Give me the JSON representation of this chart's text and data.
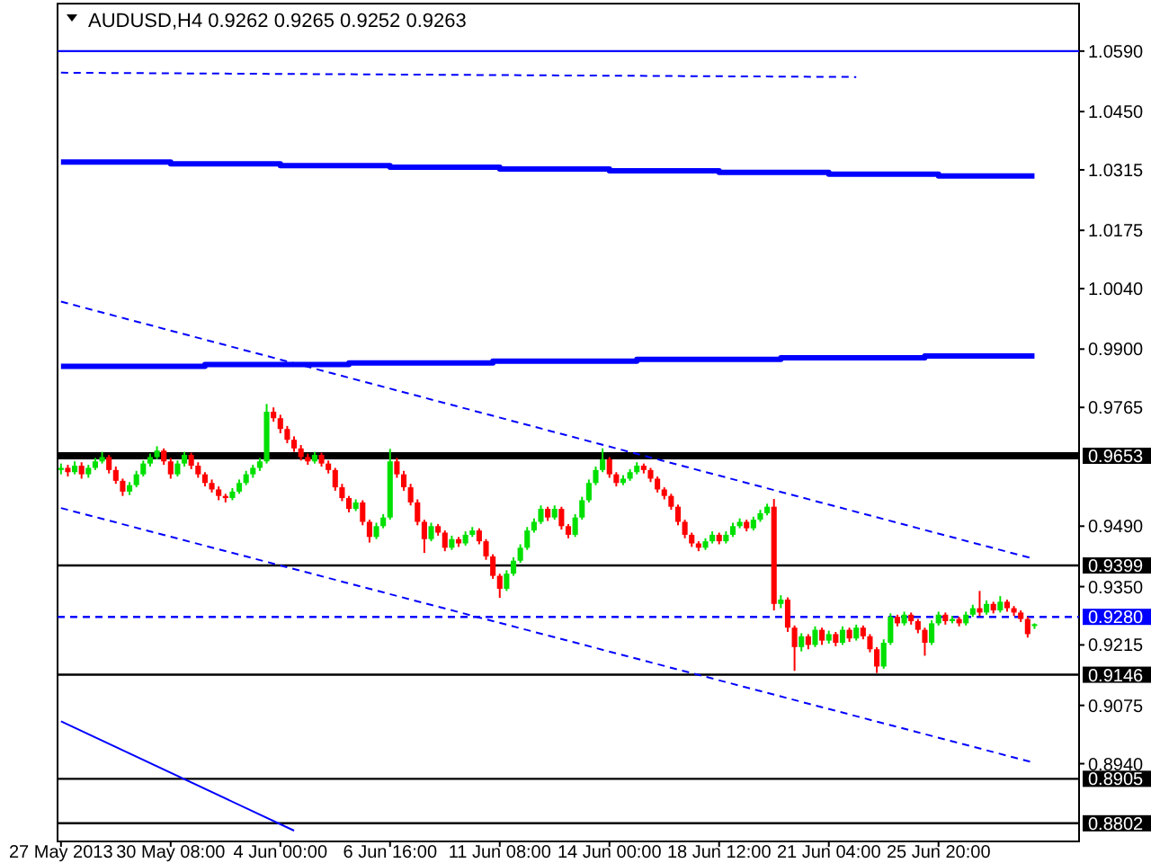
{
  "chart_data": {
    "type": "candlestick",
    "title": "AUDUSD,H4  0.9262 0.9265 0.9252 0.9263",
    "categories": [
      "27 May 2013",
      null,
      null,
      null,
      null,
      null,
      null,
      null,
      null,
      null,
      null,
      null,
      null,
      null,
      null,
      null,
      "30 May 08:00",
      null,
      null,
      null,
      null,
      null,
      null,
      null,
      null,
      null,
      null,
      null,
      null,
      null,
      null,
      null,
      "4 Jun 00:00",
      null,
      null,
      null,
      null,
      null,
      null,
      null,
      null,
      null,
      null,
      null,
      null,
      null,
      null,
      null,
      "6 Jun 16:00",
      null,
      null,
      null,
      null,
      null,
      null,
      null,
      null,
      null,
      null,
      null,
      null,
      null,
      null,
      null,
      "11 Jun 08:00",
      null,
      null,
      null,
      null,
      null,
      null,
      null,
      null,
      null,
      null,
      null,
      null,
      null,
      null,
      null,
      "14 Jun 00:00",
      null,
      null,
      null,
      null,
      null,
      null,
      null,
      null,
      null,
      null,
      null,
      null,
      null,
      null,
      null,
      "18 Jun 12:00",
      null,
      null,
      null,
      null,
      null,
      null,
      null,
      null,
      null,
      null,
      null,
      null,
      null,
      null,
      null,
      "21 Jun 04:00",
      null,
      null,
      null,
      null,
      null,
      null,
      null,
      null,
      null,
      null,
      null,
      null,
      null,
      null,
      null,
      "25 Jun 20:00",
      null,
      null,
      null,
      null,
      null,
      null,
      null,
      null,
      null,
      null,
      null,
      null,
      null,
      null
    ],
    "ohlc": [
      [
        0.962,
        0.9635,
        0.961,
        0.9625
      ],
      [
        0.9625,
        0.9632,
        0.9605,
        0.9615
      ],
      [
        0.9615,
        0.964,
        0.961,
        0.963
      ],
      [
        0.963,
        0.9638,
        0.96,
        0.961
      ],
      [
        0.961,
        0.9632,
        0.9602,
        0.9625
      ],
      [
        0.9625,
        0.9648,
        0.962,
        0.964
      ],
      [
        0.964,
        0.9662,
        0.9635,
        0.965
      ],
      [
        0.965,
        0.9655,
        0.9612,
        0.962
      ],
      [
        0.962,
        0.9628,
        0.9588,
        0.9595
      ],
      [
        0.9595,
        0.96,
        0.956,
        0.957
      ],
      [
        0.957,
        0.9592,
        0.9562,
        0.9585
      ],
      [
        0.9585,
        0.9618,
        0.958,
        0.961
      ],
      [
        0.961,
        0.9642,
        0.9605,
        0.9635
      ],
      [
        0.9635,
        0.9658,
        0.9628,
        0.965
      ],
      [
        0.965,
        0.9675,
        0.9645,
        0.9665
      ],
      [
        0.9665,
        0.967,
        0.9632,
        0.964
      ],
      [
        0.964,
        0.9648,
        0.96,
        0.961
      ],
      [
        0.961,
        0.9642,
        0.9605,
        0.9635
      ],
      [
        0.9635,
        0.9662,
        0.9628,
        0.9655
      ],
      [
        0.9655,
        0.966,
        0.9622,
        0.963
      ],
      [
        0.963,
        0.9638,
        0.9602,
        0.961
      ],
      [
        0.961,
        0.9615,
        0.9582,
        0.959
      ],
      [
        0.959,
        0.9598,
        0.9568,
        0.9575
      ],
      [
        0.9575,
        0.9582,
        0.955,
        0.956
      ],
      [
        0.956,
        0.9565,
        0.9545,
        0.9555
      ],
      [
        0.9555,
        0.9578,
        0.955,
        0.957
      ],
      [
        0.957,
        0.9598,
        0.9565,
        0.959
      ],
      [
        0.959,
        0.9618,
        0.9585,
        0.961
      ],
      [
        0.961,
        0.9632,
        0.9602,
        0.9625
      ],
      [
        0.9625,
        0.9648,
        0.9618,
        0.964
      ],
      [
        0.964,
        0.9773,
        0.9635,
        0.9755
      ],
      [
        0.9755,
        0.9765,
        0.9732,
        0.974
      ],
      [
        0.974,
        0.9748,
        0.9705,
        0.9715
      ],
      [
        0.9715,
        0.9722,
        0.9682,
        0.969
      ],
      [
        0.969,
        0.9698,
        0.9662,
        0.967
      ],
      [
        0.967,
        0.9678,
        0.9642,
        0.965
      ],
      [
        0.965,
        0.9658,
        0.9632,
        0.964
      ],
      [
        0.964,
        0.9662,
        0.9635,
        0.9655
      ],
      [
        0.9655,
        0.966,
        0.9628,
        0.9635
      ],
      [
        0.9635,
        0.9642,
        0.9612,
        0.962
      ],
      [
        0.962,
        0.9625,
        0.9572,
        0.958
      ],
      [
        0.958,
        0.9588,
        0.9548,
        0.9555
      ],
      [
        0.9555,
        0.956,
        0.9522,
        0.953
      ],
      [
        0.953,
        0.9552,
        0.9525,
        0.9545
      ],
      [
        0.9545,
        0.955,
        0.9492,
        0.95
      ],
      [
        0.95,
        0.9505,
        0.9452,
        0.9465
      ],
      [
        0.9465,
        0.9498,
        0.946,
        0.949
      ],
      [
        0.949,
        0.9518,
        0.9485,
        0.951
      ],
      [
        0.951,
        0.9669,
        0.9505,
        0.964
      ],
      [
        0.964,
        0.9648,
        0.9602,
        0.961
      ],
      [
        0.961,
        0.9618,
        0.9572,
        0.958
      ],
      [
        0.958,
        0.9588,
        0.9538,
        0.9545
      ],
      [
        0.9545,
        0.9552,
        0.9492,
        0.95
      ],
      [
        0.95,
        0.9505,
        0.9428,
        0.946
      ],
      [
        0.946,
        0.9498,
        0.9455,
        0.949
      ],
      [
        0.949,
        0.9495,
        0.9468,
        0.9475
      ],
      [
        0.9475,
        0.948,
        0.9432,
        0.944
      ],
      [
        0.944,
        0.9468,
        0.9435,
        0.946
      ],
      [
        0.946,
        0.9465,
        0.9442,
        0.945
      ],
      [
        0.945,
        0.9478,
        0.9445,
        0.947
      ],
      [
        0.947,
        0.9488,
        0.9465,
        0.948
      ],
      [
        0.948,
        0.9485,
        0.9448,
        0.9455
      ],
      [
        0.9455,
        0.946,
        0.9412,
        0.942
      ],
      [
        0.942,
        0.9425,
        0.9368,
        0.9375
      ],
      [
        0.9375,
        0.938,
        0.9324,
        0.9345
      ],
      [
        0.9345,
        0.9388,
        0.934,
        0.938
      ],
      [
        0.938,
        0.9418,
        0.9375,
        0.941
      ],
      [
        0.941,
        0.9448,
        0.9405,
        0.944
      ],
      [
        0.944,
        0.9488,
        0.9435,
        0.948
      ],
      [
        0.948,
        0.9508,
        0.9475,
        0.95
      ],
      [
        0.95,
        0.9538,
        0.9495,
        0.953
      ],
      [
        0.953,
        0.9535,
        0.9502,
        0.951
      ],
      [
        0.951,
        0.9538,
        0.9505,
        0.953
      ],
      [
        0.953,
        0.9535,
        0.9482,
        0.949
      ],
      [
        0.949,
        0.9495,
        0.9462,
        0.947
      ],
      [
        0.947,
        0.9518,
        0.9465,
        0.951
      ],
      [
        0.951,
        0.9558,
        0.9505,
        0.955
      ],
      [
        0.955,
        0.9598,
        0.9545,
        0.959
      ],
      [
        0.959,
        0.9628,
        0.9585,
        0.962
      ],
      [
        0.962,
        0.967,
        0.9615,
        0.9645
      ],
      [
        0.9645,
        0.965,
        0.9602,
        0.961
      ],
      [
        0.961,
        0.9615,
        0.9582,
        0.959
      ],
      [
        0.959,
        0.9608,
        0.9585,
        0.96
      ],
      [
        0.96,
        0.9622,
        0.9595,
        0.9615
      ],
      [
        0.9615,
        0.9638,
        0.961,
        0.963
      ],
      [
        0.963,
        0.9635,
        0.9612,
        0.962
      ],
      [
        0.962,
        0.9625,
        0.9592,
        0.96
      ],
      [
        0.96,
        0.9605,
        0.9568,
        0.9575
      ],
      [
        0.9575,
        0.958,
        0.9552,
        0.956
      ],
      [
        0.956,
        0.9565,
        0.9528,
        0.9535
      ],
      [
        0.9535,
        0.954,
        0.9492,
        0.95
      ],
      [
        0.95,
        0.9505,
        0.9462,
        0.947
      ],
      [
        0.947,
        0.9475,
        0.9442,
        0.945
      ],
      [
        0.945,
        0.9455,
        0.9432,
        0.944
      ],
      [
        0.944,
        0.9462,
        0.9435,
        0.9455
      ],
      [
        0.9455,
        0.9478,
        0.945,
        0.947
      ],
      [
        0.947,
        0.9475,
        0.9448,
        0.9455
      ],
      [
        0.9455,
        0.9478,
        0.945,
        0.947
      ],
      [
        0.947,
        0.9498,
        0.9465,
        0.949
      ],
      [
        0.949,
        0.9508,
        0.9485,
        0.95
      ],
      [
        0.95,
        0.9505,
        0.9478,
        0.9485
      ],
      [
        0.9485,
        0.9512,
        0.948,
        0.9505
      ],
      [
        0.9505,
        0.9528,
        0.95,
        0.952
      ],
      [
        0.952,
        0.9542,
        0.9515,
        0.9535
      ],
      [
        0.9535,
        0.9553,
        0.9295,
        0.931
      ],
      [
        0.931,
        0.933,
        0.93,
        0.932
      ],
      [
        0.932,
        0.9325,
        0.9245,
        0.9255
      ],
      [
        0.9255,
        0.926,
        0.9155,
        0.921
      ],
      [
        0.921,
        0.9242,
        0.92,
        0.9235
      ],
      [
        0.9235,
        0.924,
        0.9205,
        0.9215
      ],
      [
        0.9215,
        0.9258,
        0.921,
        0.925
      ],
      [
        0.925,
        0.9255,
        0.9215,
        0.9225
      ],
      [
        0.9225,
        0.9248,
        0.9218,
        0.924
      ],
      [
        0.924,
        0.9245,
        0.9212,
        0.922
      ],
      [
        0.922,
        0.9258,
        0.9215,
        0.925
      ],
      [
        0.925,
        0.9255,
        0.9222,
        0.923
      ],
      [
        0.923,
        0.9262,
        0.9225,
        0.9255
      ],
      [
        0.9255,
        0.926,
        0.9228,
        0.9235
      ],
      [
        0.9235,
        0.924,
        0.9198,
        0.9205
      ],
      [
        0.9205,
        0.921,
        0.915,
        0.9165
      ],
      [
        0.9165,
        0.9228,
        0.916,
        0.922
      ],
      [
        0.922,
        0.9288,
        0.9215,
        0.928
      ],
      [
        0.928,
        0.9285,
        0.9258,
        0.9265
      ],
      [
        0.9265,
        0.9292,
        0.926,
        0.9285
      ],
      [
        0.9285,
        0.929,
        0.9262,
        0.927
      ],
      [
        0.927,
        0.9275,
        0.9242,
        0.925
      ],
      [
        0.925,
        0.9255,
        0.919,
        0.922
      ],
      [
        0.922,
        0.9272,
        0.9215,
        0.9265
      ],
      [
        0.9265,
        0.9292,
        0.926,
        0.9285
      ],
      [
        0.9285,
        0.929,
        0.9262,
        0.927
      ],
      [
        0.927,
        0.9282,
        0.9265,
        0.9275
      ],
      [
        0.9275,
        0.928,
        0.9258,
        0.9265
      ],
      [
        0.9265,
        0.9292,
        0.926,
        0.9285
      ],
      [
        0.9285,
        0.9308,
        0.928,
        0.93
      ],
      [
        0.93,
        0.934,
        0.9282,
        0.929
      ],
      [
        0.929,
        0.9318,
        0.9285,
        0.931
      ],
      [
        0.931,
        0.9315,
        0.9288,
        0.9295
      ],
      [
        0.9295,
        0.9328,
        0.929,
        0.9315
      ],
      [
        0.9315,
        0.932,
        0.9292,
        0.93
      ],
      [
        0.93,
        0.9305,
        0.9282,
        0.929
      ],
      [
        0.929,
        0.9295,
        0.9268,
        0.9275
      ],
      [
        0.9275,
        0.928,
        0.9232,
        0.924
      ],
      [
        0.9262,
        0.9265,
        0.9252,
        0.9263
      ]
    ],
    "series": [
      {
        "type": "step",
        "color": "#0000ff",
        "values": [
          1.0333,
          null,
          null,
          null,
          null,
          null,
          null,
          null,
          null,
          null,
          null,
          null,
          null,
          null,
          null,
          null,
          1.0329,
          null,
          null,
          null,
          null,
          null,
          null,
          null,
          null,
          null,
          null,
          null,
          null,
          null,
          null,
          null,
          1.0325,
          null,
          null,
          null,
          null,
          null,
          null,
          null,
          null,
          null,
          null,
          null,
          null,
          null,
          null,
          null,
          1.0321,
          null,
          null,
          null,
          null,
          null,
          null,
          null,
          null,
          null,
          null,
          null,
          null,
          null,
          null,
          null,
          1.0317,
          null,
          null,
          null,
          null,
          null,
          null,
          null,
          null,
          null,
          null,
          null,
          null,
          null,
          null,
          null,
          1.0313,
          null,
          null,
          null,
          null,
          null,
          null,
          null,
          null,
          null,
          null,
          null,
          null,
          null,
          null,
          null,
          1.0309,
          null,
          null,
          null,
          null,
          null,
          null,
          null,
          null,
          null,
          null,
          null,
          null,
          null,
          null,
          null,
          1.0305,
          null,
          null,
          null,
          null,
          null,
          null,
          null,
          null,
          null,
          null,
          null,
          null,
          null,
          null,
          null,
          1.0301,
          null,
          null,
          null,
          null,
          null,
          null,
          null,
          null,
          null,
          null,
          null,
          null,
          null,
          1.0301
        ]
      },
      {
        "type": "step",
        "color": "#0000ff",
        "values": [
          0.986,
          null,
          null,
          null,
          null,
          null,
          null,
          null,
          null,
          null,
          null,
          null,
          null,
          null,
          null,
          null,
          null,
          null,
          null,
          null,
          null,
          0.9864,
          null,
          null,
          null,
          null,
          null,
          null,
          null,
          null,
          null,
          null,
          null,
          null,
          null,
          null,
          null,
          null,
          null,
          null,
          null,
          null,
          0.9868,
          null,
          null,
          null,
          null,
          null,
          null,
          null,
          null,
          null,
          null,
          null,
          null,
          null,
          null,
          null,
          null,
          null,
          null,
          null,
          null,
          0.9872,
          null,
          null,
          null,
          null,
          null,
          null,
          null,
          null,
          null,
          null,
          null,
          null,
          null,
          null,
          null,
          null,
          null,
          null,
          null,
          null,
          0.9876,
          null,
          null,
          null,
          null,
          null,
          null,
          null,
          null,
          null,
          null,
          null,
          null,
          null,
          null,
          null,
          null,
          null,
          null,
          null,
          null,
          0.988,
          null,
          null,
          null,
          null,
          null,
          null,
          null,
          null,
          null,
          null,
          null,
          null,
          null,
          null,
          null,
          null,
          null,
          null,
          null,
          null,
          0.9884,
          null,
          null,
          null,
          null,
          null,
          null,
          null,
          null,
          null,
          null,
          null,
          null,
          null,
          null,
          null,
          0.9884
        ]
      },
      {
        "type": "line",
        "color": "#0000ff",
        "line_style": "dashed",
        "values": [
          1.001,
          null,
          null,
          null,
          null,
          null,
          null,
          null,
          null,
          null,
          null,
          null,
          null,
          null,
          null,
          null,
          null,
          null,
          null,
          null,
          null,
          null,
          null,
          null,
          null,
          null,
          null,
          null,
          null,
          null,
          null,
          null,
          null,
          null,
          null,
          null,
          null,
          null,
          null,
          null,
          null,
          null,
          null,
          null,
          null,
          null,
          null,
          null,
          null,
          null,
          null,
          null,
          null,
          null,
          null,
          null,
          null,
          null,
          null,
          null,
          null,
          null,
          null,
          null,
          null,
          null,
          null,
          null,
          null,
          null,
          null,
          null,
          null,
          null,
          null,
          null,
          null,
          null,
          null,
          null,
          null,
          null,
          null,
          null,
          null,
          null,
          null,
          null,
          null,
          null,
          null,
          null,
          null,
          null,
          null,
          null,
          null,
          null,
          null,
          null,
          null,
          null,
          null,
          null,
          null,
          null,
          null,
          null,
          null,
          null,
          null,
          null,
          null,
          null,
          null,
          null,
          null,
          null,
          null,
          null,
          null,
          null,
          null,
          null,
          null,
          null,
          null,
          null,
          null,
          null,
          null,
          null,
          null,
          null,
          null,
          null,
          null,
          null,
          null,
          null,
          null,
          null,
          0.9414
        ]
      },
      {
        "type": "line",
        "color": "#0000ff",
        "line_style": "dashed",
        "values": [
          0.9532,
          null,
          null,
          null,
          null,
          null,
          null,
          null,
          null,
          null,
          null,
          null,
          null,
          null,
          null,
          null,
          null,
          null,
          null,
          null,
          null,
          null,
          null,
          null,
          null,
          null,
          null,
          null,
          null,
          null,
          null,
          null,
          null,
          null,
          null,
          null,
          null,
          null,
          null,
          null,
          null,
          null,
          null,
          null,
          null,
          null,
          null,
          null,
          null,
          null,
          null,
          null,
          null,
          null,
          null,
          null,
          null,
          null,
          null,
          null,
          null,
          null,
          null,
          null,
          null,
          null,
          null,
          null,
          null,
          null,
          null,
          null,
          null,
          null,
          null,
          null,
          null,
          null,
          null,
          null,
          null,
          null,
          null,
          null,
          null,
          null,
          null,
          null,
          null,
          null,
          null,
          null,
          null,
          null,
          null,
          null,
          null,
          null,
          null,
          null,
          null,
          null,
          null,
          null,
          null,
          null,
          null,
          null,
          null,
          null,
          null,
          null,
          null,
          null,
          null,
          null,
          null,
          null,
          null,
          null,
          null,
          null,
          null,
          null,
          null,
          null,
          null,
          null,
          null,
          null,
          null,
          null,
          null,
          null,
          null,
          null,
          null,
          null,
          null,
          null,
          null,
          null,
          0.8942
        ]
      },
      {
        "type": "line",
        "color": "#0000ff",
        "line_style": "dashed",
        "values": [
          1.054,
          null,
          null,
          null,
          null,
          null,
          null,
          null,
          null,
          null,
          null,
          null,
          null,
          null,
          null,
          null,
          null,
          null,
          null,
          null,
          null,
          null,
          null,
          null,
          null,
          null,
          null,
          null,
          null,
          null,
          null,
          null,
          null,
          null,
          null,
          null,
          null,
          null,
          null,
          null,
          null,
          null,
          null,
          null,
          null,
          null,
          null,
          null,
          null,
          null,
          null,
          null,
          null,
          null,
          null,
          null,
          null,
          null,
          null,
          null,
          null,
          null,
          null,
          null,
          null,
          null,
          null,
          null,
          null,
          null,
          null,
          null,
          null,
          null,
          null,
          null,
          null,
          null,
          null,
          null,
          null,
          null,
          null,
          null,
          null,
          null,
          null,
          null,
          null,
          null,
          null,
          null,
          null,
          null,
          null,
          null,
          null,
          null,
          null,
          null,
          null,
          null,
          null,
          null,
          null,
          null,
          null,
          null,
          null,
          null,
          null,
          null,
          null,
          null,
          null,
          null,
          1.053,
          null,
          null,
          null,
          null,
          null,
          null,
          null,
          null,
          null,
          null,
          null,
          null,
          null,
          null,
          null,
          null,
          null,
          null,
          null,
          null,
          null,
          null,
          null,
          null,
          null,
          null
        ]
      },
      {
        "type": "line",
        "color": "#0000ff",
        "line_style": "solid",
        "values": [
          0.9038,
          null,
          null,
          null,
          null,
          null,
          null,
          null,
          null,
          null,
          null,
          null,
          null,
          null,
          null,
          null,
          null,
          null,
          null,
          null,
          null,
          null,
          null,
          null,
          null,
          null,
          null,
          null,
          null,
          null,
          null,
          null,
          null,
          null,
          0.8785,
          null,
          null,
          null,
          null,
          null,
          null,
          null,
          null,
          null,
          null,
          null,
          null,
          null,
          null,
          null,
          null,
          null,
          null,
          null,
          null,
          null,
          null,
          null,
          null,
          null,
          null,
          null,
          null,
          null,
          null,
          null,
          null,
          null,
          null,
          null,
          null,
          null,
          null,
          null,
          null,
          null,
          null,
          null,
          null,
          null,
          null,
          null,
          null,
          null,
          null,
          null,
          null,
          null,
          null,
          null,
          null,
          null,
          null,
          null,
          null,
          null,
          null,
          null,
          null,
          null,
          null,
          null,
          null,
          null,
          null,
          null,
          null,
          null,
          null,
          null,
          null,
          null,
          null,
          null,
          null,
          null,
          null,
          null,
          null,
          null,
          null,
          null,
          null,
          null,
          null,
          null,
          null,
          null,
          null,
          null,
          null,
          null,
          null,
          null,
          null,
          null,
          null,
          null,
          null,
          null,
          null,
          null,
          null
        ]
      }
    ],
    "ylim": [
      0.876,
      1.07
    ],
    "yticks": [
      {
        "value": 1.059,
        "label": "1.0590"
      },
      {
        "value": 1.045,
        "label": "1.0450"
      },
      1.0315,
      1.0175,
      {
        "value": 1.004,
        "label": "1.0040"
      },
      {
        "value": 0.99,
        "label": "0.9900"
      },
      0.9765,
      {
        "value": 0.949,
        "label": "0.9490"
      },
      {
        "value": 0.935,
        "label": "0.9350"
      },
      0.9215,
      0.9075,
      {
        "value": 0.894,
        "label": "0.8940"
      }
    ],
    "ref_lines": [
      {
        "axis": "y",
        "value": 1.059,
        "color": "#0000ff",
        "line_style": "solid"
      },
      {
        "axis": "y",
        "value": 0.9653,
        "label": "0.9653",
        "color": "#000000",
        "line_style": "solid"
      },
      {
        "axis": "y",
        "value": 0.9399,
        "label": "0.9399",
        "color": "#000000",
        "line_style": "solid"
      },
      {
        "axis": "y",
        "value": 0.928,
        "label": "0.9280",
        "color": "#0000ff",
        "line_style": "dashed"
      },
      {
        "axis": "y",
        "value": 0.9146,
        "label": "0.9146",
        "color": "#000000",
        "line_style": "solid"
      },
      {
        "axis": "y",
        "value": 0.8905,
        "label": "0.8905",
        "color": "#000000",
        "line_style": "solid"
      },
      {
        "axis": "y",
        "value": 0.8802,
        "label": "0.8802",
        "color": "#000000",
        "line_style": "solid"
      }
    ],
    "grid": false
  }
}
